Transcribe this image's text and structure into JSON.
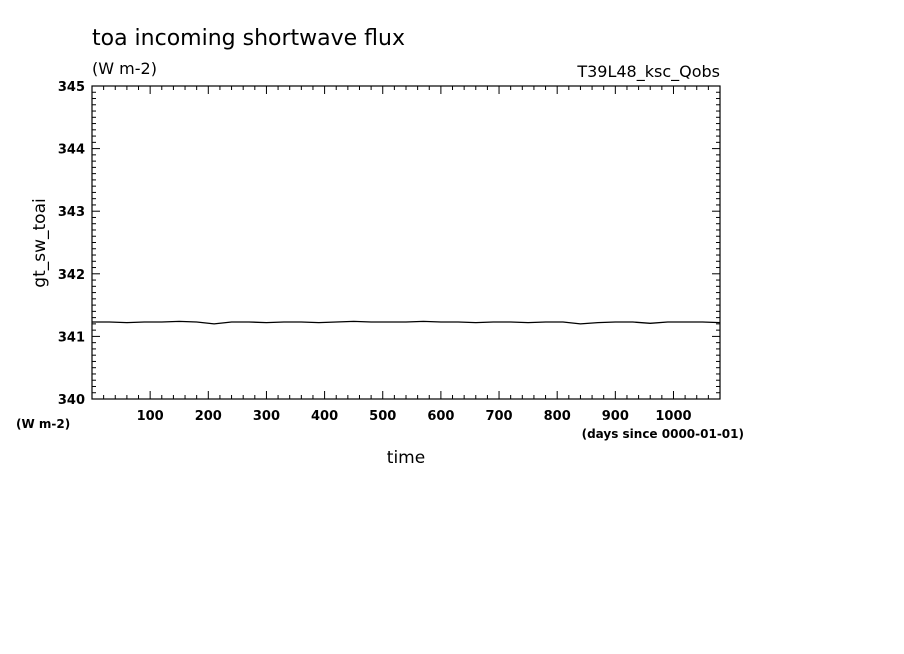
{
  "chart_data": {
    "type": "line",
    "title": "toa incoming shortwave flux",
    "title_units": "(W m-2)",
    "experiment": "T39L48_ksc_Qobs",
    "ylabel": "gt_sw_toai",
    "ylabel_units": "(W m-2)",
    "xlabel": "time",
    "xlabel_units": "(days since 0000-01-01)",
    "xlim": [
      0,
      1080
    ],
    "ylim": [
      340,
      345
    ],
    "x_ticks": [
      100,
      200,
      300,
      400,
      500,
      600,
      700,
      800,
      900,
      1000
    ],
    "y_ticks": [
      340,
      341,
      342,
      343,
      344,
      345
    ],
    "grid": false,
    "series": [
      {
        "color": "#000000",
        "x": [
          0,
          30,
          60,
          90,
          120,
          150,
          180,
          210,
          240,
          270,
          300,
          330,
          360,
          390,
          420,
          450,
          480,
          510,
          540,
          570,
          600,
          630,
          660,
          690,
          720,
          750,
          780,
          810,
          840,
          870,
          900,
          930,
          960,
          990,
          1020,
          1050,
          1080
        ],
        "y": [
          341.23,
          341.23,
          341.22,
          341.23,
          341.23,
          341.24,
          341.23,
          341.2,
          341.23,
          341.23,
          341.22,
          341.23,
          341.23,
          341.22,
          341.23,
          341.24,
          341.23,
          341.23,
          341.23,
          341.24,
          341.23,
          341.23,
          341.22,
          341.23,
          341.23,
          341.22,
          341.23,
          341.23,
          341.2,
          341.22,
          341.23,
          341.23,
          341.21,
          341.23,
          341.23,
          341.23,
          341.22
        ]
      }
    ]
  }
}
